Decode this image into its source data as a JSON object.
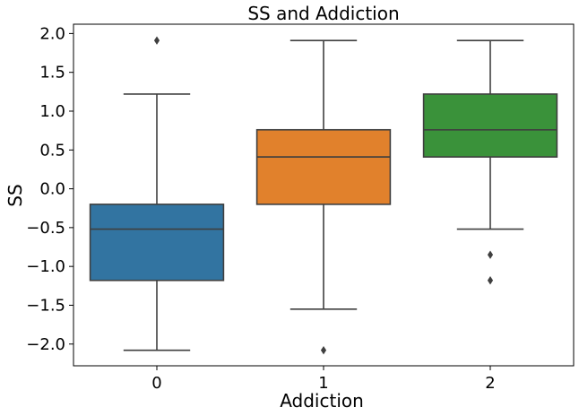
{
  "chart_data": {
    "type": "box",
    "title": "SS and Addiction",
    "xlabel": "Addiction",
    "ylabel": "SS",
    "categories": [
      "0",
      "1",
      "2"
    ],
    "ylim": [
      -2.28,
      2.12
    ],
    "yticks": [
      -2.0,
      -1.5,
      -1.0,
      -0.5,
      0.0,
      0.5,
      1.0,
      1.5,
      2.0
    ],
    "ytick_labels": [
      "−2.0",
      "−1.5",
      "−1.0",
      "−0.5",
      "0.0",
      "0.5",
      "1.0",
      "1.5",
      "2.0"
    ],
    "grid": false,
    "boxes": [
      {
        "category": "0",
        "color": "#3274a1",
        "whisker_low": -2.08,
        "q1": -1.18,
        "median": -0.52,
        "q3": -0.2,
        "whisker_high": 1.22,
        "outliers": [
          1.91
        ]
      },
      {
        "category": "1",
        "color": "#e1812c",
        "whisker_low": -1.55,
        "q1": -0.2,
        "median": 0.41,
        "q3": 0.76,
        "whisker_high": 1.91,
        "outliers": [
          -2.08
        ]
      },
      {
        "category": "2",
        "color": "#3a923a",
        "whisker_low": -0.52,
        "q1": 0.41,
        "median": 0.76,
        "q3": 1.22,
        "whisker_high": 1.91,
        "outliers": [
          -0.85,
          -1.18
        ]
      }
    ]
  }
}
